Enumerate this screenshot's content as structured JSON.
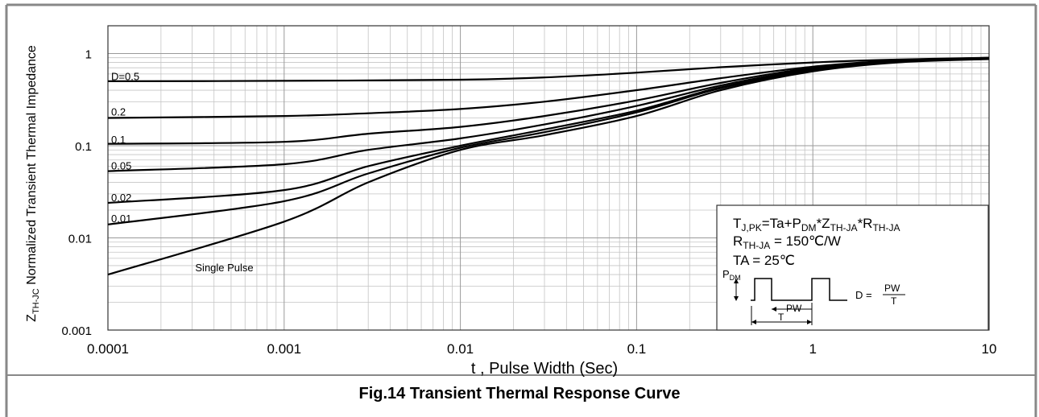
{
  "chart_data": {
    "type": "line",
    "xlabel": "t , Pulse Width (Sec)",
    "ylabel": "Z",
    "ylabel_sub": "TH-JC",
    "ylabel_rest": " Normalized Transient Thermal Impedance",
    "x_scale": "log",
    "y_scale": "log",
    "xlim": [
      0.0001,
      10
    ],
    "ylim": [
      0.001,
      2
    ],
    "x_ticks": [
      {
        "v": 0.0001,
        "label": "0.0001"
      },
      {
        "v": 0.001,
        "label": "0.001"
      },
      {
        "v": 0.01,
        "label": "0.01"
      },
      {
        "v": 0.1,
        "label": "0.1"
      },
      {
        "v": 1,
        "label": "1"
      },
      {
        "v": 10,
        "label": "10"
      }
    ],
    "y_ticks": [
      {
        "v": 0.001,
        "label": "0.001"
      },
      {
        "v": 0.01,
        "label": "0.01"
      },
      {
        "v": 0.1,
        "label": "0.1"
      },
      {
        "v": 1,
        "label": "1"
      }
    ],
    "grid": true,
    "series": [
      {
        "name": "D=0.5",
        "label_at": [
          0.0001,
          0.56
        ],
        "x": [
          0.0001,
          0.001,
          0.01,
          0.03,
          0.1,
          0.3,
          1,
          3,
          10
        ],
        "y": [
          0.5,
          0.505,
          0.52,
          0.55,
          0.62,
          0.71,
          0.8,
          0.86,
          0.9
        ]
      },
      {
        "name": "0.2",
        "label_at": [
          0.0001,
          0.23
        ],
        "x": [
          0.0001,
          0.001,
          0.003,
          0.01,
          0.03,
          0.1,
          0.3,
          1,
          3,
          10
        ],
        "y": [
          0.2,
          0.21,
          0.225,
          0.25,
          0.3,
          0.4,
          0.54,
          0.72,
          0.84,
          0.9
        ]
      },
      {
        "name": "0.1",
        "label_at": [
          0.0001,
          0.115
        ],
        "x": [
          0.0001,
          0.001,
          0.003,
          0.01,
          0.03,
          0.1,
          0.3,
          1,
          3,
          10
        ],
        "y": [
          0.105,
          0.11,
          0.135,
          0.16,
          0.21,
          0.31,
          0.48,
          0.7,
          0.83,
          0.89
        ]
      },
      {
        "name": "0.05",
        "label_at": [
          0.0001,
          0.06
        ],
        "x": [
          0.0001,
          0.001,
          0.003,
          0.01,
          0.03,
          0.1,
          0.3,
          1,
          3,
          10
        ],
        "y": [
          0.053,
          0.063,
          0.09,
          0.12,
          0.17,
          0.27,
          0.45,
          0.68,
          0.82,
          0.89
        ]
      },
      {
        "name": "0.02",
        "label_at": [
          0.0001,
          0.027
        ],
        "x": [
          0.0001,
          0.001,
          0.003,
          0.01,
          0.03,
          0.1,
          0.3,
          1,
          3,
          10
        ],
        "y": [
          0.024,
          0.033,
          0.06,
          0.1,
          0.15,
          0.24,
          0.43,
          0.66,
          0.81,
          0.88
        ]
      },
      {
        "name": "0.01",
        "label_at": [
          0.0001,
          0.016
        ],
        "x": [
          0.0001,
          0.001,
          0.003,
          0.01,
          0.03,
          0.1,
          0.3,
          1,
          3,
          10
        ],
        "y": [
          0.014,
          0.025,
          0.05,
          0.095,
          0.14,
          0.23,
          0.42,
          0.65,
          0.81,
          0.88
        ]
      },
      {
        "name": "Single Pulse",
        "label_at": [
          0.0003,
          0.0047
        ],
        "x": [
          0.0001,
          0.001,
          0.003,
          0.01,
          0.03,
          0.1,
          0.3,
          1,
          3,
          10
        ],
        "y": [
          0.004,
          0.015,
          0.04,
          0.09,
          0.13,
          0.21,
          0.4,
          0.64,
          0.8,
          0.87
        ]
      }
    ],
    "legend_box": {
      "placement": "bottom-right",
      "lines": [
        {
          "main": "T",
          "parts": [
            [
              "T",
              ""
            ],
            [
              "J,PK",
              "sub"
            ],
            [
              "=Ta+P",
              ""
            ],
            [
              "DM",
              "sub"
            ],
            [
              "*Z",
              ""
            ],
            [
              "TH-JA",
              "sub"
            ],
            [
              "*R",
              ""
            ],
            [
              "TH-JA",
              "sub"
            ]
          ]
        },
        {
          "parts": [
            [
              "R",
              ""
            ],
            [
              "TH-JA",
              "sub"
            ],
            [
              " = 150℃/W",
              ""
            ]
          ]
        },
        {
          "parts": [
            [
              "TA = 25℃",
              ""
            ]
          ]
        }
      ],
      "pulse_label": "P",
      "pulse_label_sub": "DM",
      "pw_label": "PW",
      "t_label": "T",
      "d_eq": "D =",
      "d_num": "PW",
      "d_den": "T"
    }
  },
  "figure": {
    "caption": "Fig.14 Transient Thermal Response Curve"
  }
}
